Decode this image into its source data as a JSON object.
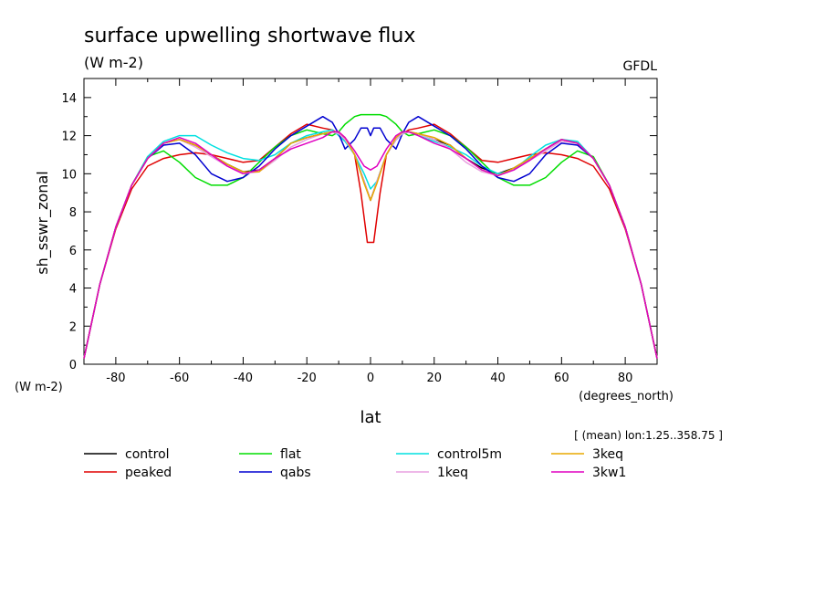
{
  "chart_data": {
    "type": "line",
    "title": "surface upwelling shortwave flux",
    "subtitle": "(W m-2)",
    "source_label": "GFDL",
    "xlabel": "lat",
    "x_units": "(degrees_north)",
    "ylabel": "sh_sswr_zonal",
    "y_units": "(W m-2)",
    "averaging_note": "[ (mean) lon:1.25..358.75 ]",
    "xlim": [
      -90,
      90
    ],
    "ylim": [
      0,
      15
    ],
    "x_ticks": [
      -80,
      -60,
      -40,
      -20,
      0,
      20,
      40,
      60,
      80
    ],
    "y_ticks": [
      0,
      2,
      4,
      6,
      8,
      10,
      12,
      14
    ],
    "grid": false,
    "legend_position": "bottom",
    "series": [
      {
        "name": "control",
        "color": "#000000",
        "x": [
          -90,
          -85,
          -80,
          -75,
          -70,
          -65,
          -60,
          -55,
          -50,
          -45,
          -40,
          -35,
          -30,
          -25,
          -20,
          -15,
          -12,
          -10,
          -8,
          -5,
          -2,
          0,
          2,
          5,
          8,
          10,
          12,
          15,
          20,
          25,
          30,
          35,
          40,
          45,
          50,
          55,
          60,
          65,
          70,
          75,
          80,
          85,
          90
        ],
        "y": [
          0.3,
          4.2,
          7.2,
          9.4,
          10.8,
          11.6,
          11.8,
          11.5,
          11.0,
          10.5,
          10.1,
          10.2,
          10.8,
          11.6,
          11.9,
          12.1,
          12.2,
          12.1,
          11.8,
          11.0,
          9.6,
          8.6,
          9.6,
          11.0,
          11.8,
          12.1,
          12.2,
          12.1,
          11.8,
          11.5,
          10.8,
          10.3,
          10.0,
          10.3,
          10.8,
          11.3,
          11.8,
          11.6,
          10.8,
          9.4,
          7.2,
          4.2,
          0.3
        ]
      },
      {
        "name": "peaked",
        "color": "#e00000",
        "x": [
          -90,
          -85,
          -80,
          -75,
          -70,
          -65,
          -60,
          -55,
          -50,
          -45,
          -40,
          -35,
          -30,
          -25,
          -20,
          -15,
          -12,
          -10,
          -8,
          -5,
          -3,
          -1,
          0,
          1,
          3,
          5,
          8,
          10,
          12,
          15,
          20,
          25,
          30,
          35,
          40,
          45,
          50,
          55,
          60,
          65,
          70,
          75,
          80,
          85,
          90
        ],
        "y": [
          0.3,
          4.2,
          7.1,
          9.2,
          10.4,
          10.8,
          11.0,
          11.1,
          11.0,
          10.8,
          10.6,
          10.7,
          11.4,
          12.1,
          12.6,
          12.4,
          12.3,
          12.1,
          11.8,
          11.0,
          9.0,
          6.4,
          6.4,
          6.4,
          9.0,
          11.0,
          11.8,
          12.1,
          12.3,
          12.4,
          12.6,
          12.1,
          11.4,
          10.7,
          10.6,
          10.8,
          11.0,
          11.1,
          11.0,
          10.8,
          10.4,
          9.2,
          7.1,
          4.2,
          0.3
        ]
      },
      {
        "name": "flat",
        "color": "#00dd00",
        "x": [
          -90,
          -85,
          -80,
          -75,
          -70,
          -65,
          -60,
          -55,
          -50,
          -45,
          -40,
          -35,
          -30,
          -25,
          -20,
          -15,
          -12,
          -10,
          -8,
          -5,
          -3,
          0,
          3,
          5,
          8,
          10,
          12,
          15,
          20,
          25,
          30,
          35,
          40,
          45,
          50,
          55,
          60,
          65,
          70,
          75,
          80,
          85,
          90
        ],
        "y": [
          0.3,
          4.2,
          7.2,
          9.4,
          10.9,
          11.2,
          10.6,
          9.8,
          9.4,
          9.4,
          9.8,
          10.6,
          11.4,
          12.0,
          12.3,
          12.1,
          12.0,
          12.2,
          12.6,
          13.0,
          13.1,
          13.1,
          13.1,
          13.0,
          12.6,
          12.2,
          12.0,
          12.1,
          12.3,
          12.0,
          11.4,
          10.6,
          9.8,
          9.4,
          9.4,
          9.8,
          10.6,
          11.2,
          10.9,
          9.4,
          7.2,
          4.2,
          0.3
        ]
      },
      {
        "name": "control5m",
        "color": "#00e0e0",
        "x": [
          -90,
          -85,
          -80,
          -75,
          -70,
          -65,
          -60,
          -55,
          -50,
          -45,
          -40,
          -35,
          -30,
          -25,
          -20,
          -15,
          -12,
          -10,
          -8,
          -5,
          -2,
          0,
          2,
          5,
          8,
          10,
          12,
          15,
          20,
          25,
          30,
          35,
          40,
          45,
          50,
          55,
          60,
          65,
          70,
          75,
          80,
          85,
          90
        ],
        "y": [
          0.3,
          4.2,
          7.2,
          9.4,
          10.9,
          11.7,
          12.0,
          12.0,
          11.5,
          11.1,
          10.8,
          10.7,
          11.0,
          11.6,
          12.0,
          12.2,
          12.3,
          12.0,
          11.7,
          11.0,
          10.0,
          9.2,
          9.6,
          11.0,
          11.8,
          12.1,
          12.2,
          12.0,
          11.7,
          11.4,
          11.0,
          10.4,
          10.0,
          10.2,
          10.9,
          11.5,
          11.8,
          11.7,
          10.8,
          9.4,
          7.2,
          4.2,
          0.3
        ]
      },
      {
        "name": "qabs",
        "color": "#0000d0",
        "x": [
          -90,
          -85,
          -80,
          -75,
          -70,
          -65,
          -60,
          -55,
          -50,
          -45,
          -40,
          -35,
          -30,
          -25,
          -20,
          -15,
          -12,
          -10,
          -8,
          -5,
          -3,
          -1,
          0,
          1,
          3,
          5,
          8,
          10,
          12,
          15,
          20,
          25,
          30,
          35,
          40,
          45,
          50,
          55,
          60,
          65,
          70,
          75,
          80,
          85,
          90
        ],
        "y": [
          0.3,
          4.2,
          7.2,
          9.4,
          10.8,
          11.5,
          11.6,
          11.0,
          10.0,
          9.6,
          9.8,
          10.4,
          11.3,
          12.0,
          12.5,
          13.0,
          12.7,
          12.1,
          11.3,
          11.8,
          12.4,
          12.4,
          12.0,
          12.4,
          12.4,
          11.8,
          11.3,
          12.1,
          12.7,
          13.0,
          12.5,
          12.0,
          11.3,
          10.4,
          9.8,
          9.6,
          10.0,
          11.0,
          11.6,
          11.5,
          10.8,
          9.4,
          7.2,
          4.2,
          0.3
        ]
      },
      {
        "name": "1keq",
        "color": "#e8a0e0",
        "x": [
          -90,
          -85,
          -80,
          -75,
          -70,
          -65,
          -60,
          -55,
          -50,
          -45,
          -40,
          -35,
          -30,
          -25,
          -20,
          -15,
          -12,
          -10,
          -8,
          -5,
          -2,
          0,
          2,
          5,
          8,
          10,
          12,
          15,
          20,
          25,
          30,
          35,
          40,
          45,
          50,
          55,
          60,
          65,
          70,
          75,
          80,
          85,
          90
        ],
        "y": [
          0.3,
          4.2,
          7.2,
          9.4,
          10.8,
          11.6,
          11.8,
          11.4,
          10.9,
          10.4,
          10.0,
          10.1,
          10.7,
          11.4,
          11.8,
          12.1,
          12.2,
          12.1,
          11.8,
          11.0,
          9.6,
          8.6,
          9.6,
          11.0,
          11.8,
          12.1,
          12.2,
          12.1,
          11.8,
          11.3,
          10.6,
          10.1,
          9.9,
          10.2,
          10.7,
          11.2,
          11.7,
          11.6,
          10.8,
          9.4,
          7.2,
          4.2,
          0.3
        ]
      },
      {
        "name": "3keq",
        "color": "#e8a800",
        "x": [
          -90,
          -85,
          -80,
          -75,
          -70,
          -65,
          -60,
          -55,
          -50,
          -45,
          -40,
          -35,
          -30,
          -25,
          -20,
          -15,
          -12,
          -10,
          -8,
          -5,
          -2,
          0,
          2,
          5,
          8,
          10,
          12,
          15,
          20,
          25,
          30,
          35,
          40,
          45,
          50,
          55,
          60,
          65,
          70,
          75,
          80,
          85,
          90
        ],
        "y": [
          0.3,
          4.2,
          7.2,
          9.4,
          10.8,
          11.6,
          11.8,
          11.5,
          11.0,
          10.5,
          10.1,
          10.1,
          10.8,
          11.6,
          11.9,
          12.1,
          12.2,
          12.2,
          11.9,
          11.0,
          9.5,
          8.6,
          9.5,
          11.0,
          11.9,
          12.2,
          12.2,
          12.1,
          11.9,
          11.5,
          10.8,
          10.2,
          9.9,
          10.3,
          10.8,
          11.3,
          11.8,
          11.6,
          10.8,
          9.4,
          7.2,
          4.2,
          0.3
        ]
      },
      {
        "name": "3kw1",
        "color": "#e000c0",
        "x": [
          -90,
          -85,
          -80,
          -75,
          -70,
          -65,
          -60,
          -55,
          -50,
          -45,
          -40,
          -35,
          -30,
          -25,
          -20,
          -15,
          -12,
          -10,
          -8,
          -5,
          -2,
          0,
          2,
          5,
          8,
          10,
          12,
          15,
          20,
          25,
          30,
          35,
          40,
          45,
          50,
          55,
          60,
          65,
          70,
          75,
          80,
          85,
          90
        ],
        "y": [
          0.3,
          4.2,
          7.2,
          9.4,
          10.8,
          11.6,
          11.9,
          11.6,
          11.0,
          10.4,
          10.0,
          10.2,
          10.8,
          11.3,
          11.6,
          11.9,
          12.2,
          12.2,
          11.9,
          11.2,
          10.4,
          10.2,
          10.4,
          11.3,
          12.0,
          12.2,
          12.2,
          12.0,
          11.6,
          11.3,
          10.8,
          10.2,
          9.9,
          10.2,
          10.7,
          11.3,
          11.8,
          11.6,
          10.8,
          9.4,
          7.2,
          4.2,
          0.3
        ]
      }
    ]
  }
}
